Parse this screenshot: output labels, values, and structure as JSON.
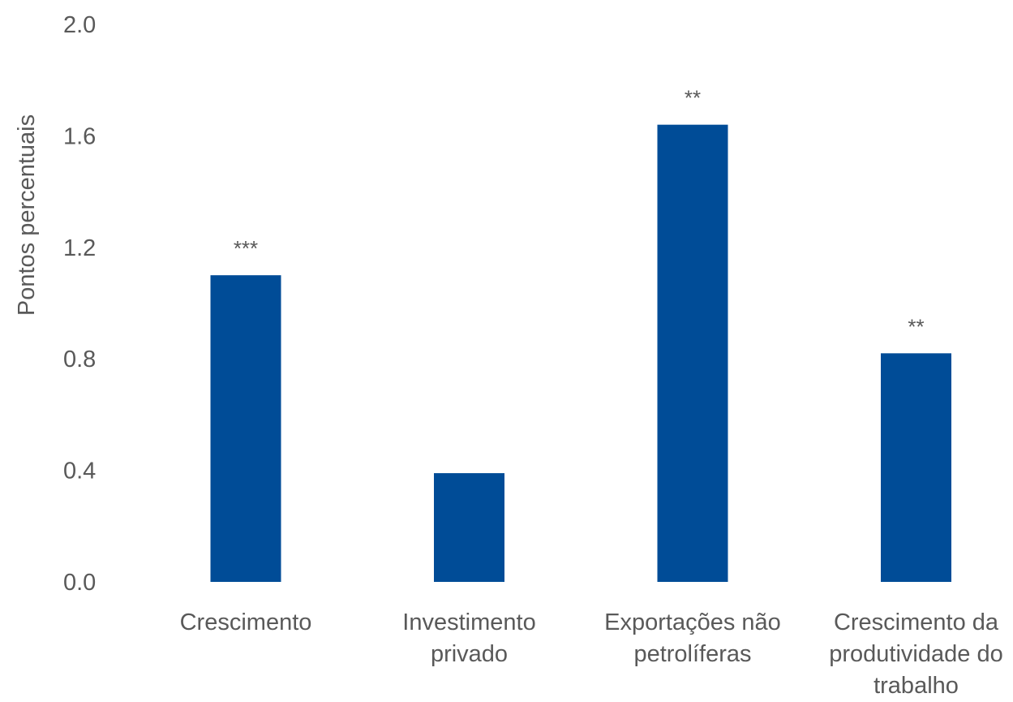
{
  "chart_data": {
    "type": "bar",
    "title": "",
    "xlabel": "",
    "ylabel": "Pontos percentuais",
    "ylim": [
      0,
      2.0
    ],
    "yticks": [
      0,
      0.4,
      0.8,
      1.2,
      1.6,
      2.0
    ],
    "ytick_labels": [
      "0.0",
      "0.4",
      "0.8",
      "1.2",
      "1.6",
      "2.0"
    ],
    "grid": false,
    "legend": "none",
    "categories": [
      [
        "Crescimento"
      ],
      [
        "Investimento",
        "privado"
      ],
      [
        "Exportações não",
        "petrolíferas"
      ],
      [
        "Crescimento da",
        "produtividade do",
        "trabalho"
      ]
    ],
    "values": [
      1.1,
      0.39,
      1.64,
      0.82
    ],
    "annotations": [
      "***",
      "",
      "**",
      "**"
    ],
    "colors": {
      "bar": "#004C97",
      "text": "#595959"
    }
  }
}
